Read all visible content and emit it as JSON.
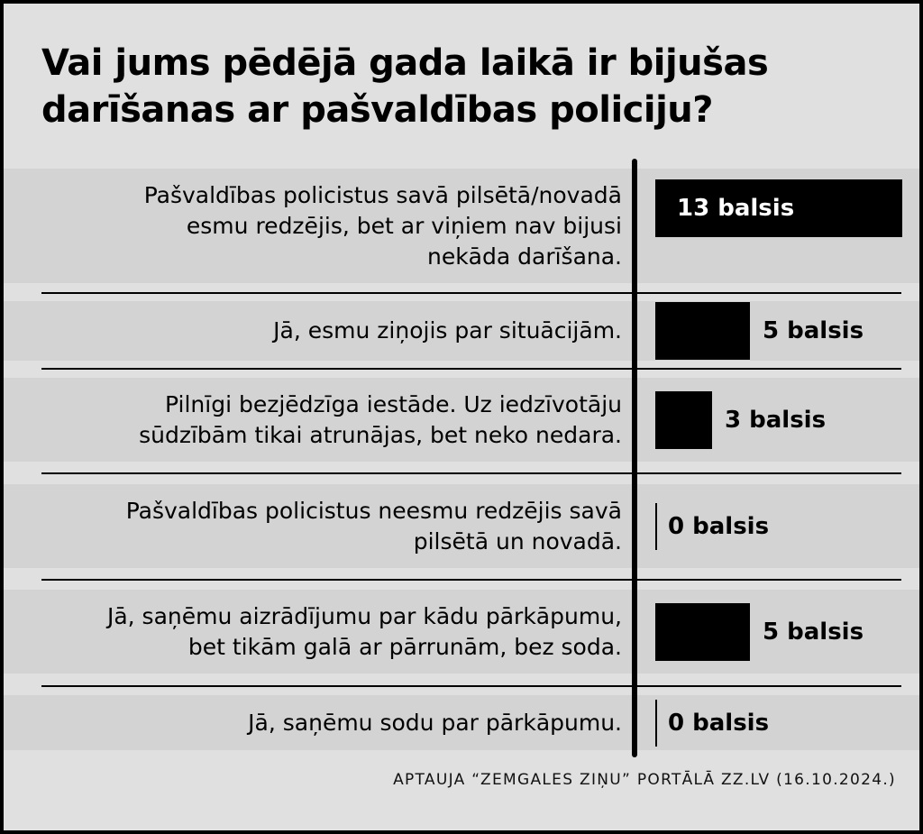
{
  "chart_data": {
    "type": "bar",
    "orientation": "horizontal",
    "title": "Vai jums pēdējā gada laikā ir bijušas darīšanas ar pašvaldības policiju?",
    "unit": "balsis",
    "xlim": [
      0,
      13
    ],
    "categories": [
      [
        "Pašvaldības policistus savā pilsētā/novadā",
        "esmu redzējis, bet ar viņiem nav bijusi",
        "nekāda darīšana."
      ],
      [
        "Jā, esmu ziņojis par situācijām."
      ],
      [
        "Pilnīgi bezjēdzīga iestāde. Uz iedzīvotāju",
        "sūdzībām tikai atrunājas, bet neko nedara."
      ],
      [
        "Pašvaldības policistus neesmu redzējis savā",
        "pilsētā un novadā."
      ],
      [
        "Jā, saņēmu aizrādījumu par kādu pārkāpumu,",
        "bet tikām galā ar pārrunām, bez soda."
      ],
      [
        "Jā, saņēmu sodu par pārkāpumu."
      ]
    ],
    "values": [
      13,
      5,
      3,
      0,
      5,
      0
    ],
    "value_labels": [
      "13 balsis",
      "5 balsis",
      "3 balsis",
      "0 balsis",
      "5 balsis",
      "0 balsis"
    ],
    "bar_color": "#000000",
    "row_band_color": "#d3d3d3",
    "background_color": "#e0e0e0"
  },
  "source": "APTAUJA “ZEMGALES ZIŅU” PORTĀLĀ ZZ.LV (16.10.2024.)"
}
